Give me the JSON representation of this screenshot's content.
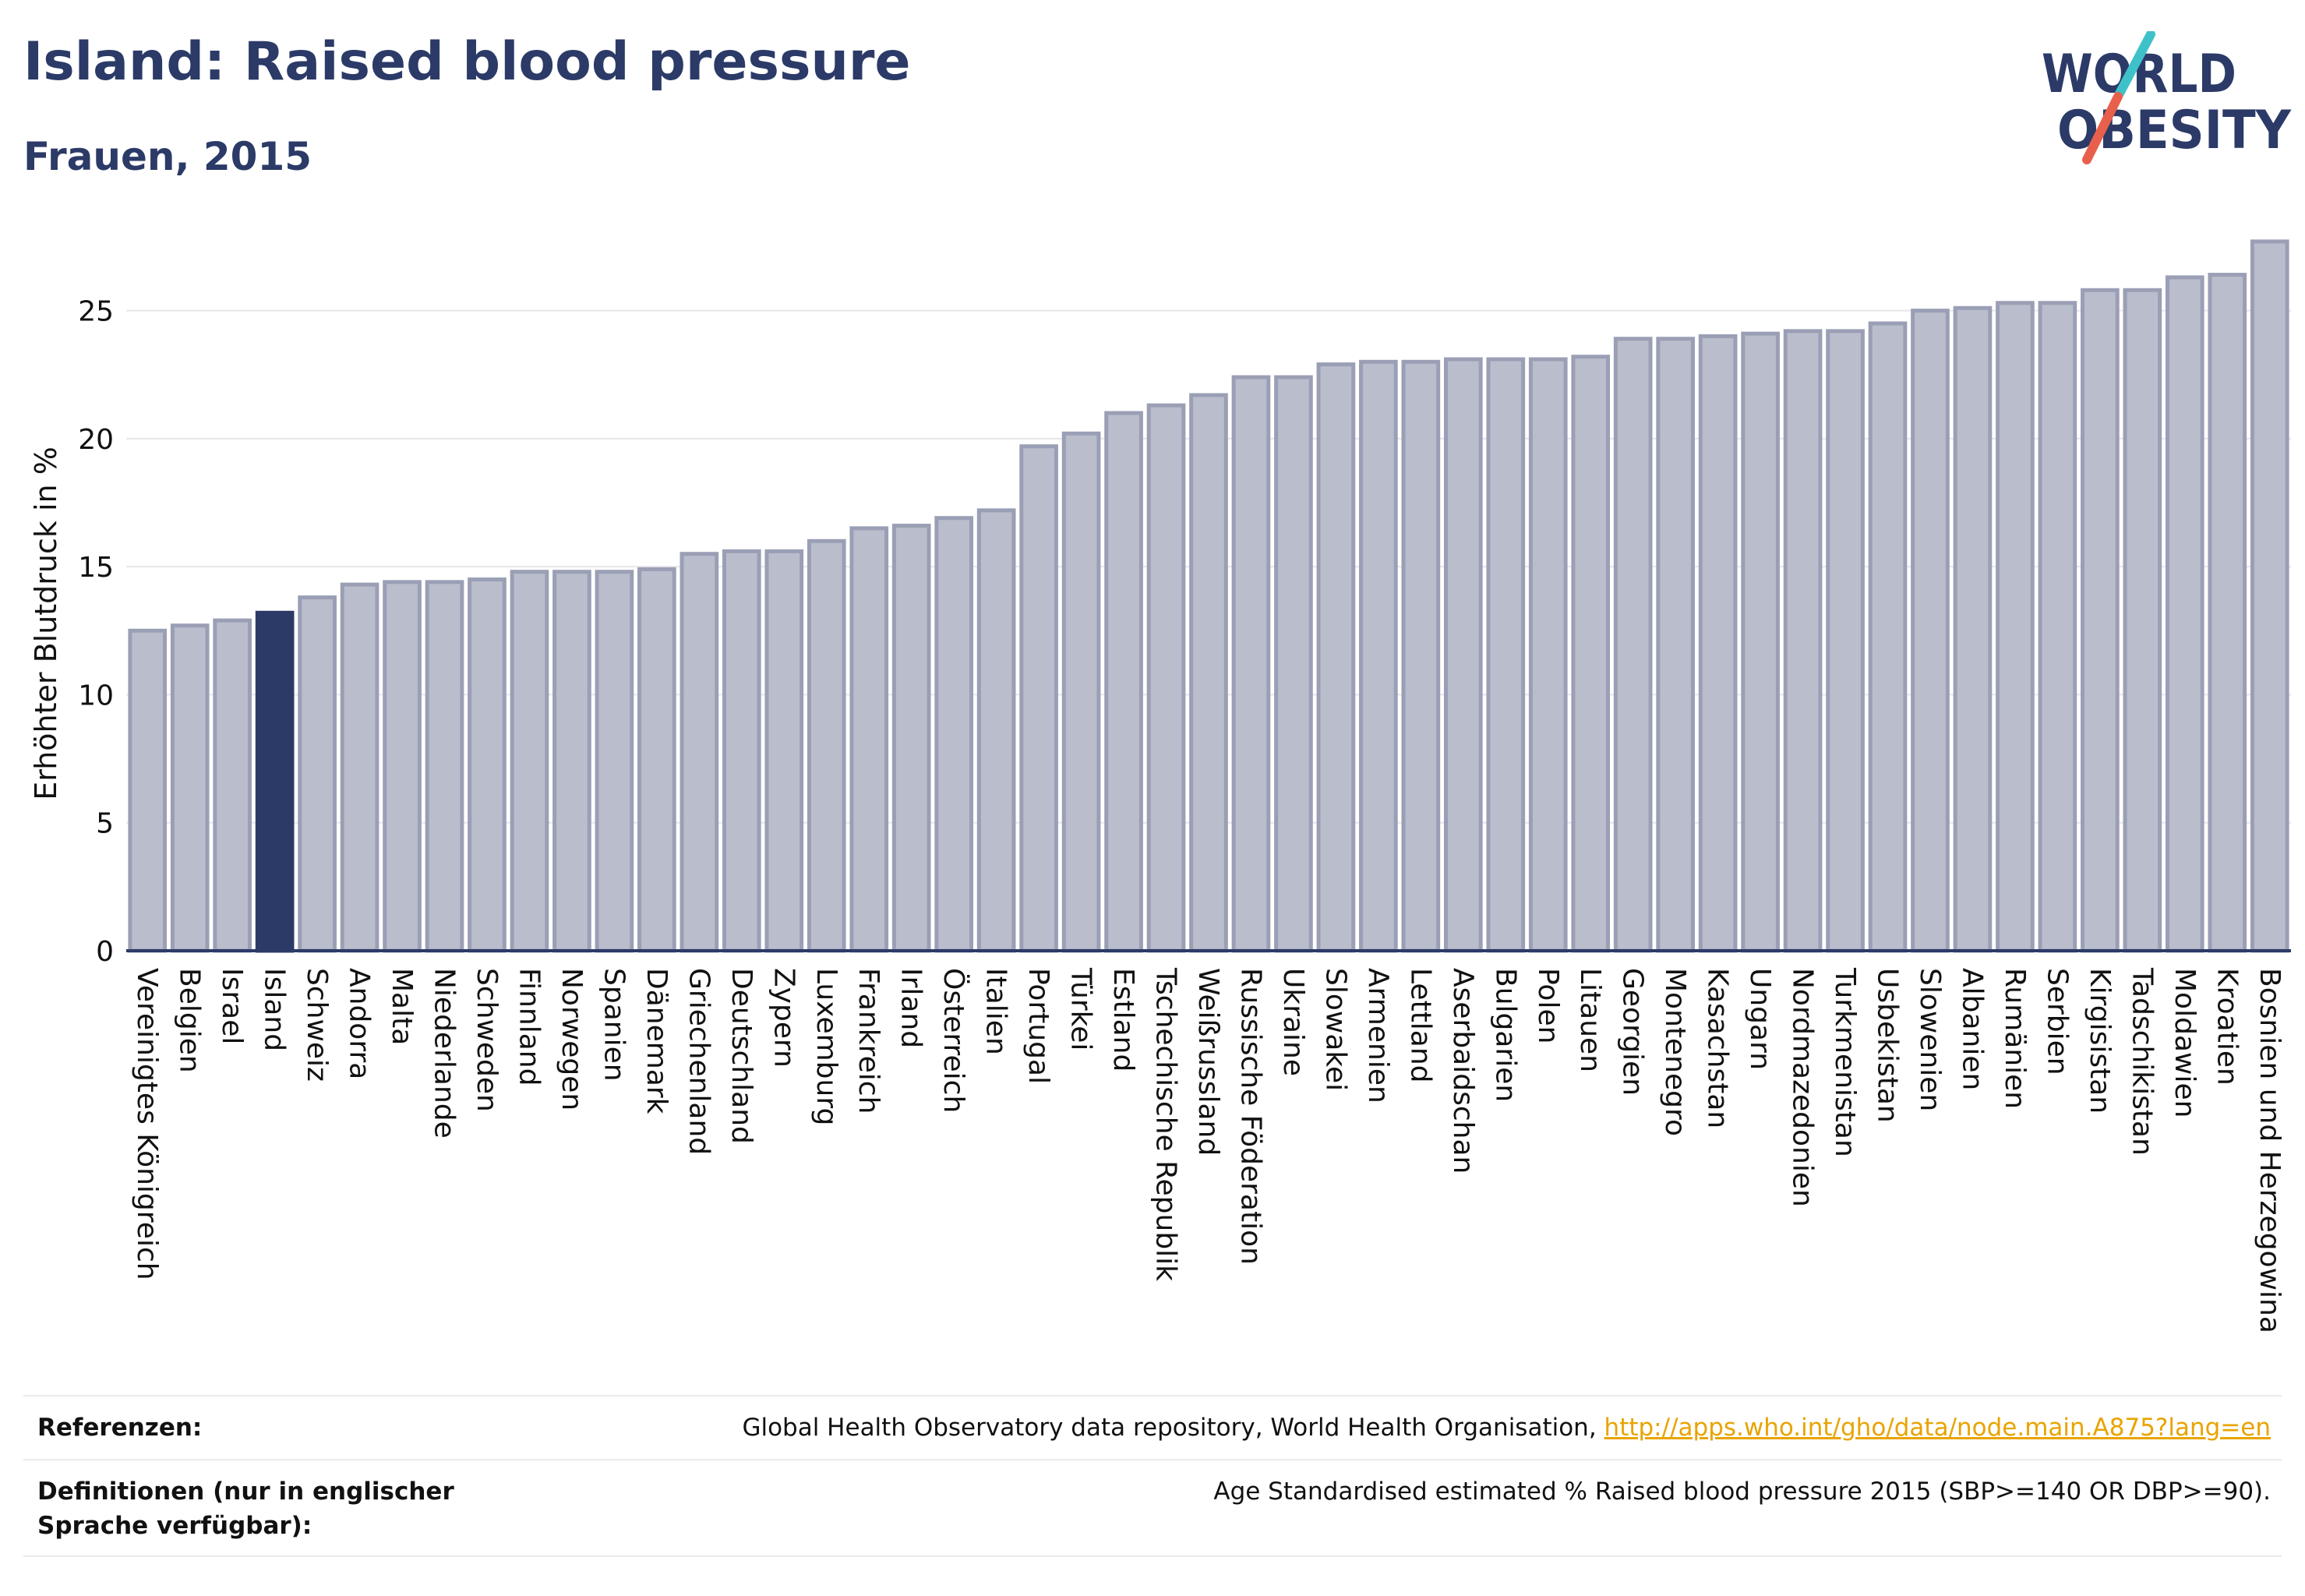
{
  "header": {
    "title": "Island: Raised blood pressure",
    "subtitle": "Frauen, 2015"
  },
  "logo": {
    "line1": "WORLD",
    "line2": "OBESITY",
    "slash_colors": [
      "#3fc1c9",
      "#e8604c"
    ],
    "text_color": "#2b3a67"
  },
  "chart_data": {
    "type": "bar",
    "ylabel": "Erhöhter Blutdruck in %",
    "ylim": [
      0,
      28
    ],
    "yticks": [
      0,
      5,
      10,
      15,
      20,
      25
    ],
    "grid": true,
    "highlight": "Island",
    "colors": {
      "bar": "#b9bdcc",
      "bar_edge": "#9a9fb5",
      "highlight": "#2b3a67",
      "axis": "#2b3a67",
      "grid": "#e6e6ea"
    },
    "categories": [
      "Vereinigtes Königreich",
      "Belgien",
      "Israel",
      "Island",
      "Schweiz",
      "Andorra",
      "Malta",
      "Niederlande",
      "Schweden",
      "Finnland",
      "Norwegen",
      "Spanien",
      "Dänemark",
      "Griechenland",
      "Deutschland",
      "Zypern",
      "Luxemburg",
      "Frankreich",
      "Irland",
      "Österreich",
      "Italien",
      "Portugal",
      "Türkei",
      "Estland",
      "Tschechische Republik",
      "Weißrussland",
      "Russische Föderation",
      "Ukraine",
      "Slowakei",
      "Armenien",
      "Lettland",
      "Aserbaidschan",
      "Bulgarien",
      "Polen",
      "Litauen",
      "Georgien",
      "Montenegro",
      "Kasachstan",
      "Ungarn",
      "Nordmazedonien",
      "Turkmenistan",
      "Usbekistan",
      "Slowenien",
      "Albanien",
      "Rumänien",
      "Serbien",
      "Kirgisistan",
      "Tadschikistan",
      "Moldawien",
      "Kroatien",
      "Bosnien und Herzegowina"
    ],
    "values": [
      12.5,
      12.7,
      12.9,
      13.2,
      13.8,
      14.3,
      14.4,
      14.4,
      14.5,
      14.8,
      14.8,
      14.8,
      14.9,
      15.5,
      15.6,
      15.6,
      16.0,
      16.5,
      16.6,
      16.9,
      17.2,
      19.7,
      20.2,
      21.0,
      21.3,
      21.7,
      22.4,
      22.4,
      22.9,
      23.0,
      23.0,
      23.1,
      23.1,
      23.1,
      23.2,
      23.9,
      23.9,
      24.0,
      24.1,
      24.2,
      24.2,
      24.5,
      25.0,
      25.1,
      25.3,
      25.3,
      25.8,
      25.8,
      26.3,
      26.4,
      27.7
    ]
  },
  "footer": {
    "references_label": "Referenzen:",
    "references_text": "Global Health Observatory data repository, World Health Organisation, ",
    "references_link": "http://apps.who.int/gho/data/node.main.A875?lang=en",
    "definitions_label": "Definitionen (nur in englischer Sprache verfügbar):",
    "definitions_text": "Age Standardised estimated % Raised blood pressure 2015 (SBP>=140 OR DBP>=90)."
  }
}
